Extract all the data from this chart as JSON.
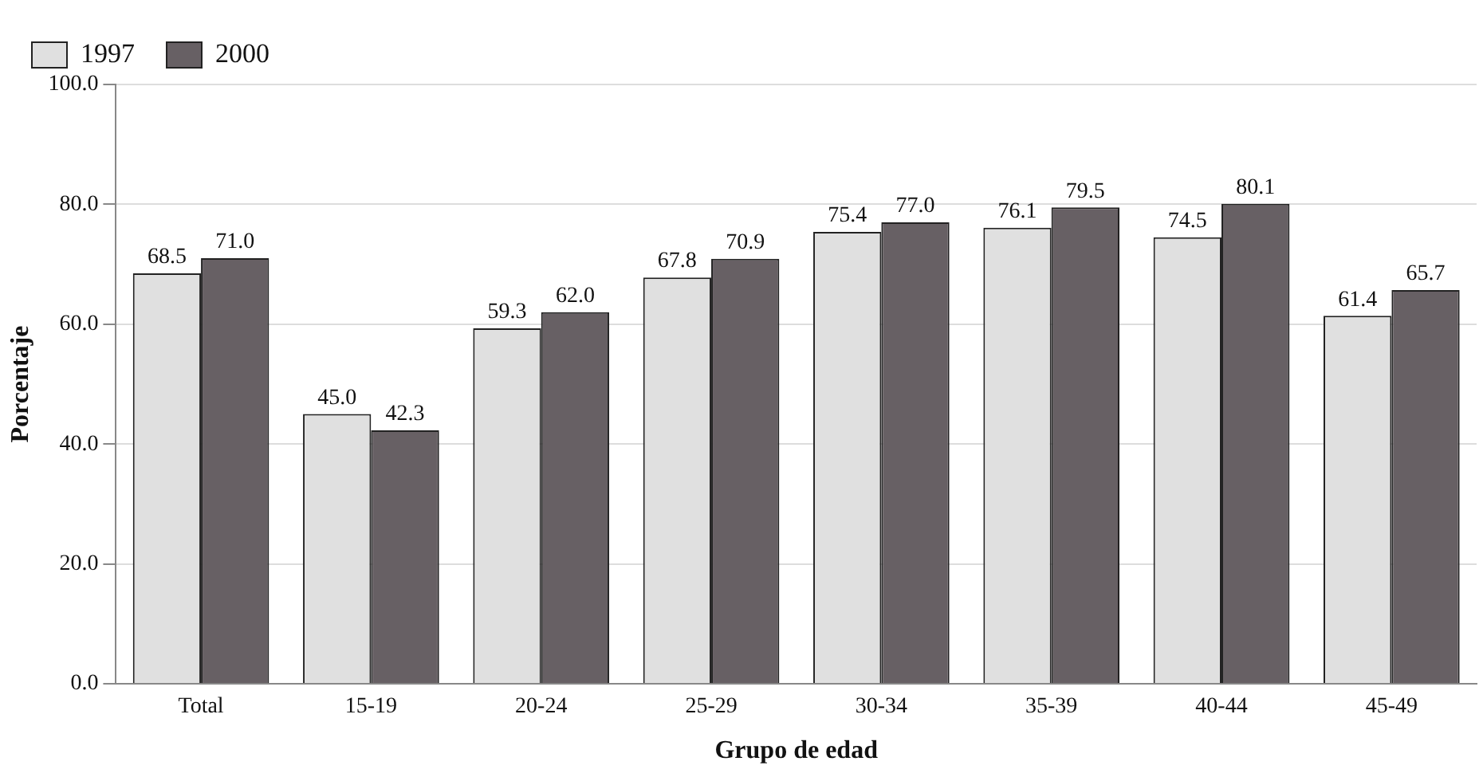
{
  "chart_data": {
    "type": "bar",
    "xlabel": "Grupo de edad",
    "ylabel": "Porcentaje",
    "categories": [
      "Total",
      "15-19",
      "20-24",
      "25-29",
      "30-34",
      "35-39",
      "40-44",
      "45-49"
    ],
    "series": [
      {
        "name": "1997",
        "color": "#e0e0e0",
        "values": [
          68.5,
          45.0,
          59.3,
          67.8,
          75.4,
          76.1,
          74.5,
          61.4
        ],
        "value_labels": [
          "68.5",
          "45.0",
          "59.3",
          "67.8",
          "75.4",
          "76.1",
          "74.5",
          "61.4"
        ]
      },
      {
        "name": "2000",
        "color": "#676064",
        "values": [
          71.0,
          42.3,
          62.0,
          70.9,
          77.0,
          79.5,
          80.1,
          65.7
        ],
        "value_labels": [
          "71.0",
          "42.3",
          "62.0",
          "70.9",
          "77.0",
          "79.5",
          "80.1",
          "65.7"
        ]
      }
    ],
    "ylim": [
      0,
      100
    ],
    "yticks": [
      {
        "value": 0,
        "label": "0.0"
      },
      {
        "value": 20,
        "label": "20.0"
      },
      {
        "value": 40,
        "label": "40.0"
      },
      {
        "value": 60,
        "label": "60.0"
      },
      {
        "value": 80,
        "label": "80.0"
      },
      {
        "value": 100,
        "label": "100.0"
      }
    ],
    "grid": "y",
    "legend": "top left"
  }
}
